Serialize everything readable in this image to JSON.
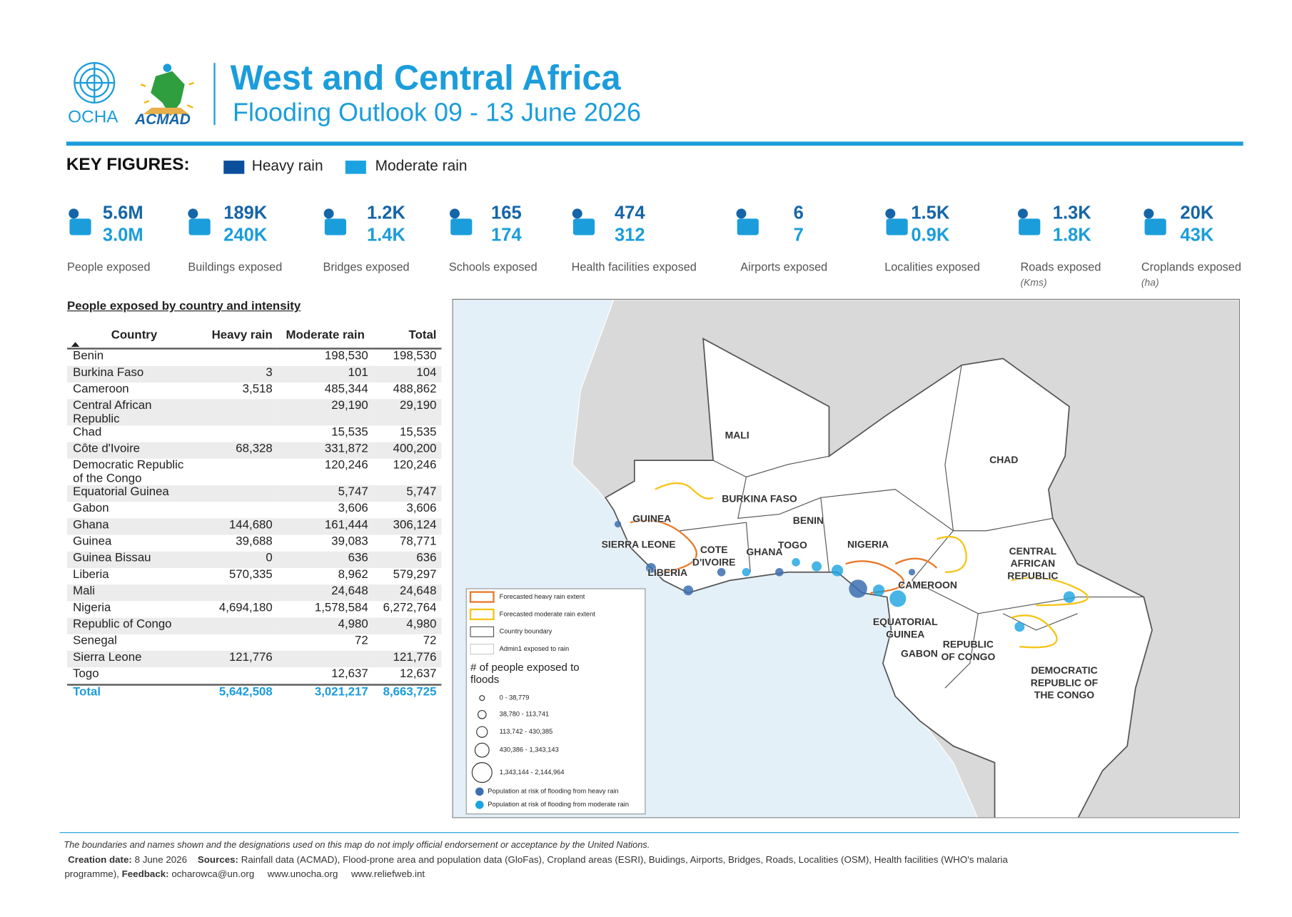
{
  "header": {
    "logos": [
      "OCHA",
      "ACMAD"
    ],
    "title": "West and Central Africa",
    "subtitle": "Flooding Outlook 09 - 13 June 2026"
  },
  "key_figures": {
    "title": "KEY FIGURES:",
    "legend": [
      "Heavy rain",
      "Moderate rain"
    ],
    "items": [
      {
        "heavy": "5.6M",
        "moderate": "3.0M",
        "label": "People exposed"
      },
      {
        "heavy": "189K",
        "moderate": "240K",
        "label": "Buildings exposed"
      },
      {
        "heavy": "1.2K",
        "moderate": "1.4K",
        "label": "Bridges exposed"
      },
      {
        "heavy": "165",
        "moderate": "174",
        "label": "Schools exposed"
      },
      {
        "heavy": "474",
        "moderate": "312",
        "label": "Health facilities exposed"
      },
      {
        "heavy": "6",
        "moderate": "7",
        "label": "Airports exposed"
      },
      {
        "heavy": "1.5K",
        "moderate": "0.9K",
        "label": "Localities exposed"
      },
      {
        "heavy": "1.3K",
        "moderate": "1.8K",
        "label": "Roads exposed",
        "unit": "(Kms)"
      },
      {
        "heavy": "20K",
        "moderate": "43K",
        "label": "Croplands exposed",
        "unit": "(ha)"
      }
    ]
  },
  "table": {
    "title": "People exposed by country and intensity",
    "columns": [
      "Country",
      "Heavy rain",
      "Moderate rain",
      "Total"
    ],
    "rows": [
      [
        "Benin",
        null,
        "198,530",
        "198,530"
      ],
      [
        "Burkina Faso",
        "3",
        "101",
        "104"
      ],
      [
        "Cameroon",
        "3,518",
        "485,344",
        "488,862"
      ],
      [
        "Central African Republic",
        null,
        "29,190",
        "29,190"
      ],
      [
        "Chad",
        null,
        "15,535",
        "15,535"
      ],
      [
        "Côte d'Ivoire",
        "68,328",
        "331,872",
        "400,200"
      ],
      [
        "Democratic Republic of the Congo",
        null,
        "120,246",
        "120,246"
      ],
      [
        "Equatorial Guinea",
        null,
        "5,747",
        "5,747"
      ],
      [
        "Gabon",
        null,
        "3,606",
        "3,606"
      ],
      [
        "Ghana",
        "144,680",
        "161,444",
        "306,124"
      ],
      [
        "Guinea",
        "39,688",
        "39,083",
        "78,771"
      ],
      [
        "Guinea Bissau",
        "0",
        "636",
        "636"
      ],
      [
        "Liberia",
        "570,335",
        "8,962",
        "579,297"
      ],
      [
        "Mali",
        null,
        "24,648",
        "24,648"
      ],
      [
        "Nigeria",
        "4,694,180",
        "1,578,584",
        "6,272,764"
      ],
      [
        "Republic of Congo",
        null,
        "4,980",
        "4,980"
      ],
      [
        "Senegal",
        null,
        "72",
        "72"
      ],
      [
        "Sierra Leone",
        "121,776",
        null,
        "121,776"
      ],
      [
        "Togo",
        null,
        "12,637",
        "12,637"
      ]
    ],
    "total": [
      "Total",
      "5,642,508",
      "3,021,217",
      "8,663,725"
    ]
  },
  "map": {
    "labels": [
      [
        "MALI"
      ],
      [
        "BURKINA FASO"
      ],
      [
        "BENIN"
      ],
      [
        "TOGO"
      ],
      [
        "NIGERIA"
      ],
      [
        "GHANA"
      ],
      [
        "COTE",
        "D'IVOIRE"
      ],
      [
        "GUINEA"
      ],
      [
        "SIERRA LEONE"
      ],
      [
        "LIBERIA"
      ],
      [
        "CAMEROON"
      ],
      [
        "EQUATORIAL",
        "GUINEA"
      ],
      [
        "GABON"
      ],
      [
        "REPUBLIC",
        "OF CONGO"
      ],
      [
        "CHAD"
      ],
      [
        "CENTRAL",
        "AFRICAN",
        "REPUBLIC"
      ],
      [
        "DEMOCRATIC",
        "REPUBLIC OF",
        "THE CONGO"
      ]
    ],
    "legend": {
      "extents": [
        "Forecasted heavy rain extent",
        "Forecasted moderate rain extent",
        "Country boundary",
        "Admin1 exposed to rain"
      ],
      "size_title": "# of people exposed to floods",
      "sizes": [
        "0 - 38,779",
        "38,780 - 113,741",
        "113,742 - 430,385",
        "430,386 - 1,343,143",
        "1,343,144 - 2,144,964"
      ],
      "population": [
        "Population at risk of flooding from heavy rain",
        "Population at risk of flooding from moderate rain"
      ]
    }
  },
  "footer": {
    "disclaimer": "The boundaries and names shown and the designations used on this map do not imply official endorsement or acceptance by the United Nations.",
    "creation_label": "Creation date:",
    "creation": "8 June 2026",
    "sources_label": "Sources:",
    "sources": "Rainfall data (ACMAD), Flood-prone area and population data (GloFas), Cropland areas (ESRI), Buidings, Airports, Bridges, Roads, Localities (OSM), Health facilities (WHO's malaria programme),",
    "feedback_label": "Feedback:",
    "feedback": "ocharowca@un.org",
    "links": [
      "www.unocha.org",
      "www.reliefweb.int"
    ]
  }
}
